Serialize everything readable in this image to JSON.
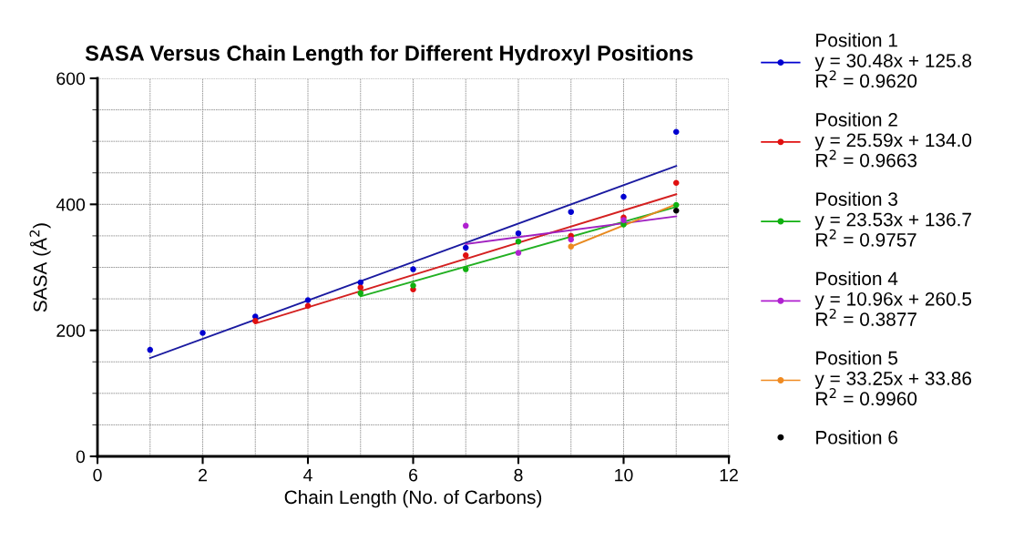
{
  "chart_data": {
    "type": "scatter",
    "title": "SASA Versus Chain Length for Different Hydroxyl Positions",
    "xlabel": "Chain Length (No. of Carbons)",
    "ylabel": "SASA (Å$^{2}$)",
    "xlim": [
      0,
      12
    ],
    "xticks": [
      0,
      2,
      4,
      6,
      8,
      10,
      12
    ],
    "ylim": [
      0,
      600
    ],
    "yticks": [
      0,
      200,
      400,
      600
    ],
    "grid": true,
    "legend": "right",
    "marker": "circle",
    "series": [
      {
        "type": "line",
        "marker": "none",
        "color": "#1a1aa0",
        "x": [
          1,
          11
        ],
        "values": [
          156,
          461
        ]
      },
      {
        "type": "line",
        "marker": "none",
        "color": "#d42020",
        "x": [
          3,
          11
        ],
        "values": [
          211,
          416
        ]
      },
      {
        "type": "line",
        "marker": "none",
        "color": "#22b022",
        "x": [
          5,
          11
        ],
        "values": [
          254,
          396
        ]
      },
      {
        "type": "line",
        "marker": "none",
        "color": "#a020c0",
        "x": [
          7,
          11
        ],
        "values": [
          337,
          381
        ]
      },
      {
        "type": "line",
        "marker": "none",
        "color": "#e88a20",
        "x": [
          9,
          11
        ],
        "values": [
          333,
          400
        ]
      },
      {
        "name": "Position 1\ny = 30.48x + 125.8\nR$^{2}$ = 0.9620",
        "color": "#0000d0",
        "x": [
          1,
          2,
          3,
          4,
          5,
          6,
          7,
          8,
          9,
          10,
          11
        ],
        "values": [
          169,
          196,
          222,
          248,
          276,
          297,
          331,
          354,
          388,
          412,
          515
        ]
      },
      {
        "name": "Position 2\ny = 25.59x + 134.0\nR$^{2}$ = 0.9663",
        "color": "#e01010",
        "x": [
          3,
          4,
          5,
          6,
          7,
          8,
          9,
          10,
          11
        ],
        "values": [
          215,
          239,
          268,
          265,
          319,
          null,
          350,
          379,
          434
        ]
      },
      {
        "name": "Position 3\ny = 23.53x + 136.7\nR$^{2}$ = 0.9757",
        "color": "#10b010",
        "x": [
          5,
          6,
          7,
          8,
          9,
          10,
          11
        ],
        "values": [
          259,
          271,
          297,
          341,
          null,
          368,
          399
        ]
      },
      {
        "name": "Position 4\ny = 10.96x + 260.5\nR$^{2}$ = 0.3877",
        "color": "#b020d0",
        "x": [
          7,
          8,
          9,
          10
        ],
        "values": [
          366,
          323,
          344,
          375
        ]
      },
      {
        "name": "Position 5\ny = 33.25x + 33.86\nR$^{2}$ = 0.9960",
        "color": "#f08a20",
        "x": [
          9
        ],
        "values": [
          333
        ]
      },
      {
        "name": "Position 6",
        "color": "#000000",
        "x": [
          11
        ],
        "values": [
          390
        ]
      }
    ]
  }
}
